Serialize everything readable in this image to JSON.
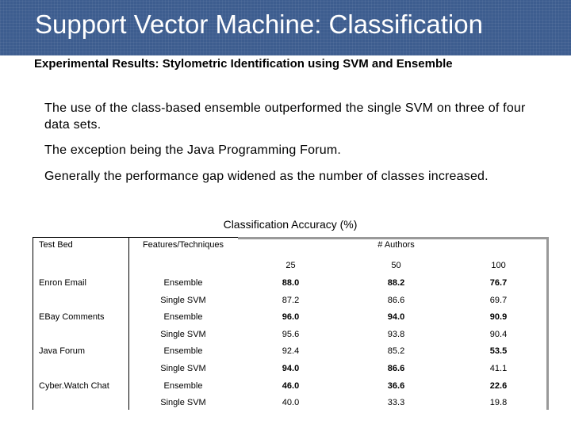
{
  "slide": {
    "title": "Support Vector Machine: Classification",
    "subtitle": "Experimental Results: Stylometric Identification using SVM and Ensemble",
    "paragraphs": [
      "The use of the class-based ensemble outperformed the single SVM on three of four data sets.",
      "The exception being the Java Programming Forum.",
      "Generally the performance gap widened as the number of classes increased."
    ],
    "caption": "Classification Accuracy (%)"
  },
  "table": {
    "headers": {
      "test_bed": "Test Bed",
      "features": "Features/Techniques",
      "authors": "# Authors",
      "cols": [
        "25",
        "50",
        "100"
      ]
    },
    "rows": [
      {
        "bed": "Enron Email",
        "tech": "Ensemble",
        "vals": [
          "88.0",
          "88.2",
          "76.7"
        ],
        "bold": [
          true,
          true,
          true
        ]
      },
      {
        "bed": "",
        "tech": "Single SVM",
        "vals": [
          "87.2",
          "86.6",
          "69.7"
        ],
        "bold": [
          false,
          false,
          false
        ]
      },
      {
        "bed": "EBay Comments",
        "tech": "Ensemble",
        "vals": [
          "96.0",
          "94.0",
          "90.9"
        ],
        "bold": [
          true,
          true,
          true
        ]
      },
      {
        "bed": "",
        "tech": "Single SVM",
        "vals": [
          "95.6",
          "93.8",
          "90.4"
        ],
        "bold": [
          false,
          false,
          false
        ]
      },
      {
        "bed": "Java Forum",
        "tech": "Ensemble",
        "vals": [
          "92.4",
          "85.2",
          "53.5"
        ],
        "bold": [
          false,
          false,
          true
        ]
      },
      {
        "bed": "",
        "tech": "Single SVM",
        "vals": [
          "94.0",
          "86.6",
          "41.1"
        ],
        "bold": [
          true,
          true,
          false
        ]
      },
      {
        "bed": "Cyber.Watch Chat",
        "tech": "Ensemble",
        "vals": [
          "46.0",
          "36.6",
          "22.6"
        ],
        "bold": [
          true,
          true,
          true
        ]
      },
      {
        "bed": "",
        "tech": "Single SVM",
        "vals": [
          "40.0",
          "33.3",
          "19.8"
        ],
        "bold": [
          false,
          false,
          false
        ]
      }
    ]
  }
}
